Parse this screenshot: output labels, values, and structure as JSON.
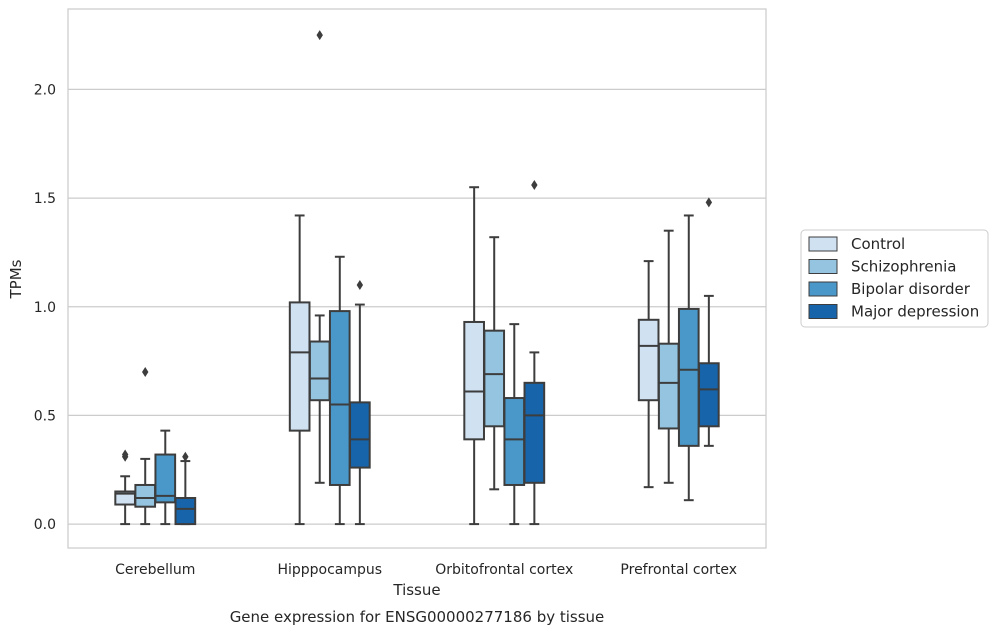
{
  "chart_data": {
    "type": "box",
    "xlabel": "Tissue",
    "ylabel": "TPMs",
    "caption": "Gene expression for ENSG00000277186 by tissue",
    "categories": [
      "Cerebellum",
      "Hipppocampus",
      "Orbitofrontal cortex",
      "Prefrontal cortex"
    ],
    "ylim": [
      -0.11,
      2.37
    ],
    "yticks": [
      0.0,
      0.5,
      1.0,
      1.5,
      2.0
    ],
    "ytick_labels": [
      "0.0",
      "0.5",
      "1.0",
      "1.5",
      "2.0"
    ],
    "grid": true,
    "legend_position": "right",
    "series": [
      {
        "name": "Control",
        "color": "#d0e1f2",
        "boxes": [
          {
            "category": "Cerebellum",
            "whisker_low": 0.0,
            "q1": 0.09,
            "median": 0.14,
            "q3": 0.15,
            "whisker_high": 0.22,
            "outliers": [
              0.31,
              0.32
            ]
          },
          {
            "category": "Hipppocampus",
            "whisker_low": 0.0,
            "q1": 0.43,
            "median": 0.79,
            "q3": 1.02,
            "whisker_high": 1.42,
            "outliers": []
          },
          {
            "category": "Orbitofrontal cortex",
            "whisker_low": 0.0,
            "q1": 0.39,
            "median": 0.61,
            "q3": 0.93,
            "whisker_high": 1.55,
            "outliers": []
          },
          {
            "category": "Prefrontal cortex",
            "whisker_low": 0.17,
            "q1": 0.57,
            "median": 0.82,
            "q3": 0.94,
            "whisker_high": 1.21,
            "outliers": []
          }
        ]
      },
      {
        "name": "Schizophrenia",
        "color": "#94c4df",
        "boxes": [
          {
            "category": "Cerebellum",
            "whisker_low": 0.0,
            "q1": 0.08,
            "median": 0.12,
            "q3": 0.18,
            "whisker_high": 0.3,
            "outliers": [
              0.7
            ]
          },
          {
            "category": "Hipppocampus",
            "whisker_low": 0.19,
            "q1": 0.57,
            "median": 0.67,
            "q3": 0.84,
            "whisker_high": 0.96,
            "outliers": [
              2.25
            ]
          },
          {
            "category": "Orbitofrontal cortex",
            "whisker_low": 0.16,
            "q1": 0.45,
            "median": 0.69,
            "q3": 0.89,
            "whisker_high": 1.32,
            "outliers": []
          },
          {
            "category": "Prefrontal cortex",
            "whisker_low": 0.19,
            "q1": 0.44,
            "median": 0.65,
            "q3": 0.83,
            "whisker_high": 1.35,
            "outliers": []
          }
        ]
      },
      {
        "name": "Bipolar disorder",
        "color": "#4a98c9",
        "boxes": [
          {
            "category": "Cerebellum",
            "whisker_low": 0.0,
            "q1": 0.1,
            "median": 0.13,
            "q3": 0.32,
            "whisker_high": 0.43,
            "outliers": []
          },
          {
            "category": "Hipppocampus",
            "whisker_low": 0.0,
            "q1": 0.18,
            "median": 0.55,
            "q3": 0.98,
            "whisker_high": 1.23,
            "outliers": []
          },
          {
            "category": "Orbitofrontal cortex",
            "whisker_low": 0.0,
            "q1": 0.18,
            "median": 0.39,
            "q3": 0.58,
            "whisker_high": 0.92,
            "outliers": []
          },
          {
            "category": "Prefrontal cortex",
            "whisker_low": 0.11,
            "q1": 0.36,
            "median": 0.71,
            "q3": 0.99,
            "whisker_high": 1.42,
            "outliers": []
          }
        ]
      },
      {
        "name": "Major depression",
        "color": "#1764ab",
        "boxes": [
          {
            "category": "Cerebellum",
            "whisker_low": 0.0,
            "q1": 0.0,
            "median": 0.07,
            "q3": 0.12,
            "whisker_high": 0.29,
            "outliers": [
              0.31
            ]
          },
          {
            "category": "Hipppocampus",
            "whisker_low": 0.0,
            "q1": 0.26,
            "median": 0.39,
            "q3": 0.56,
            "whisker_high": 1.01,
            "outliers": [
              1.1
            ]
          },
          {
            "category": "Orbitofrontal cortex",
            "whisker_low": 0.0,
            "q1": 0.19,
            "median": 0.5,
            "q3": 0.65,
            "whisker_high": 0.79,
            "outliers": [
              1.56
            ]
          },
          {
            "category": "Prefrontal cortex",
            "whisker_low": 0.36,
            "q1": 0.45,
            "median": 0.62,
            "q3": 0.74,
            "whisker_high": 1.05,
            "outliers": [
              1.48
            ]
          }
        ]
      }
    ]
  }
}
